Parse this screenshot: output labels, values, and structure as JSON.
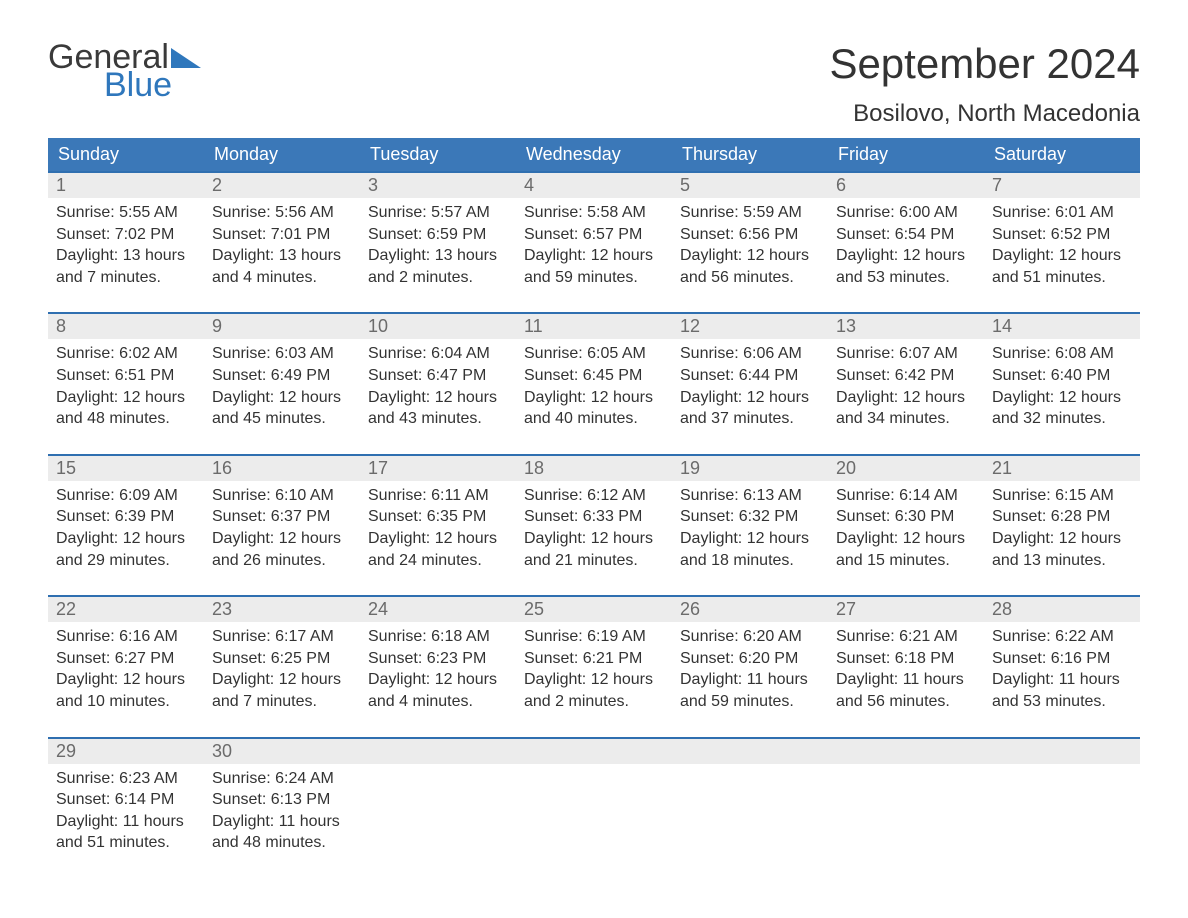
{
  "logo": {
    "general": "General",
    "blue": "Blue",
    "tri_color": "#2f77bc"
  },
  "header": {
    "month_title": "September 2024",
    "location": "Bosilovo, North Macedonia"
  },
  "colors": {
    "header_bg": "#3b78b8",
    "header_text": "#ffffff",
    "day_border": "#2f6fb0",
    "daynum_bg": "#ececec",
    "daynum_text": "#6b6b6b",
    "body_text": "#333333",
    "page_bg": "#ffffff"
  },
  "typography": {
    "month_title_fontsize": 42,
    "location_fontsize": 24,
    "weekday_fontsize": 18,
    "daynum_fontsize": 18,
    "body_fontsize": 16
  },
  "weekdays": [
    "Sunday",
    "Monday",
    "Tuesday",
    "Wednesday",
    "Thursday",
    "Friday",
    "Saturday"
  ],
  "weeks": [
    [
      {
        "num": "1",
        "sunrise": "Sunrise: 5:55 AM",
        "sunset": "Sunset: 7:02 PM",
        "daylight": "Daylight: 13 hours and 7 minutes."
      },
      {
        "num": "2",
        "sunrise": "Sunrise: 5:56 AM",
        "sunset": "Sunset: 7:01 PM",
        "daylight": "Daylight: 13 hours and 4 minutes."
      },
      {
        "num": "3",
        "sunrise": "Sunrise: 5:57 AM",
        "sunset": "Sunset: 6:59 PM",
        "daylight": "Daylight: 13 hours and 2 minutes."
      },
      {
        "num": "4",
        "sunrise": "Sunrise: 5:58 AM",
        "sunset": "Sunset: 6:57 PM",
        "daylight": "Daylight: 12 hours and 59 minutes."
      },
      {
        "num": "5",
        "sunrise": "Sunrise: 5:59 AM",
        "sunset": "Sunset: 6:56 PM",
        "daylight": "Daylight: 12 hours and 56 minutes."
      },
      {
        "num": "6",
        "sunrise": "Sunrise: 6:00 AM",
        "sunset": "Sunset: 6:54 PM",
        "daylight": "Daylight: 12 hours and 53 minutes."
      },
      {
        "num": "7",
        "sunrise": "Sunrise: 6:01 AM",
        "sunset": "Sunset: 6:52 PM",
        "daylight": "Daylight: 12 hours and 51 minutes."
      }
    ],
    [
      {
        "num": "8",
        "sunrise": "Sunrise: 6:02 AM",
        "sunset": "Sunset: 6:51 PM",
        "daylight": "Daylight: 12 hours and 48 minutes."
      },
      {
        "num": "9",
        "sunrise": "Sunrise: 6:03 AM",
        "sunset": "Sunset: 6:49 PM",
        "daylight": "Daylight: 12 hours and 45 minutes."
      },
      {
        "num": "10",
        "sunrise": "Sunrise: 6:04 AM",
        "sunset": "Sunset: 6:47 PM",
        "daylight": "Daylight: 12 hours and 43 minutes."
      },
      {
        "num": "11",
        "sunrise": "Sunrise: 6:05 AM",
        "sunset": "Sunset: 6:45 PM",
        "daylight": "Daylight: 12 hours and 40 minutes."
      },
      {
        "num": "12",
        "sunrise": "Sunrise: 6:06 AM",
        "sunset": "Sunset: 6:44 PM",
        "daylight": "Daylight: 12 hours and 37 minutes."
      },
      {
        "num": "13",
        "sunrise": "Sunrise: 6:07 AM",
        "sunset": "Sunset: 6:42 PM",
        "daylight": "Daylight: 12 hours and 34 minutes."
      },
      {
        "num": "14",
        "sunrise": "Sunrise: 6:08 AM",
        "sunset": "Sunset: 6:40 PM",
        "daylight": "Daylight: 12 hours and 32 minutes."
      }
    ],
    [
      {
        "num": "15",
        "sunrise": "Sunrise: 6:09 AM",
        "sunset": "Sunset: 6:39 PM",
        "daylight": "Daylight: 12 hours and 29 minutes."
      },
      {
        "num": "16",
        "sunrise": "Sunrise: 6:10 AM",
        "sunset": "Sunset: 6:37 PM",
        "daylight": "Daylight: 12 hours and 26 minutes."
      },
      {
        "num": "17",
        "sunrise": "Sunrise: 6:11 AM",
        "sunset": "Sunset: 6:35 PM",
        "daylight": "Daylight: 12 hours and 24 minutes."
      },
      {
        "num": "18",
        "sunrise": "Sunrise: 6:12 AM",
        "sunset": "Sunset: 6:33 PM",
        "daylight": "Daylight: 12 hours and 21 minutes."
      },
      {
        "num": "19",
        "sunrise": "Sunrise: 6:13 AM",
        "sunset": "Sunset: 6:32 PM",
        "daylight": "Daylight: 12 hours and 18 minutes."
      },
      {
        "num": "20",
        "sunrise": "Sunrise: 6:14 AM",
        "sunset": "Sunset: 6:30 PM",
        "daylight": "Daylight: 12 hours and 15 minutes."
      },
      {
        "num": "21",
        "sunrise": "Sunrise: 6:15 AM",
        "sunset": "Sunset: 6:28 PM",
        "daylight": "Daylight: 12 hours and 13 minutes."
      }
    ],
    [
      {
        "num": "22",
        "sunrise": "Sunrise: 6:16 AM",
        "sunset": "Sunset: 6:27 PM",
        "daylight": "Daylight: 12 hours and 10 minutes."
      },
      {
        "num": "23",
        "sunrise": "Sunrise: 6:17 AM",
        "sunset": "Sunset: 6:25 PM",
        "daylight": "Daylight: 12 hours and 7 minutes."
      },
      {
        "num": "24",
        "sunrise": "Sunrise: 6:18 AM",
        "sunset": "Sunset: 6:23 PM",
        "daylight": "Daylight: 12 hours and 4 minutes."
      },
      {
        "num": "25",
        "sunrise": "Sunrise: 6:19 AM",
        "sunset": "Sunset: 6:21 PM",
        "daylight": "Daylight: 12 hours and 2 minutes."
      },
      {
        "num": "26",
        "sunrise": "Sunrise: 6:20 AM",
        "sunset": "Sunset: 6:20 PM",
        "daylight": "Daylight: 11 hours and 59 minutes."
      },
      {
        "num": "27",
        "sunrise": "Sunrise: 6:21 AM",
        "sunset": "Sunset: 6:18 PM",
        "daylight": "Daylight: 11 hours and 56 minutes."
      },
      {
        "num": "28",
        "sunrise": "Sunrise: 6:22 AM",
        "sunset": "Sunset: 6:16 PM",
        "daylight": "Daylight: 11 hours and 53 minutes."
      }
    ],
    [
      {
        "num": "29",
        "sunrise": "Sunrise: 6:23 AM",
        "sunset": "Sunset: 6:14 PM",
        "daylight": "Daylight: 11 hours and 51 minutes."
      },
      {
        "num": "30",
        "sunrise": "Sunrise: 6:24 AM",
        "sunset": "Sunset: 6:13 PM",
        "daylight": "Daylight: 11 hours and 48 minutes."
      },
      null,
      null,
      null,
      null,
      null
    ]
  ]
}
